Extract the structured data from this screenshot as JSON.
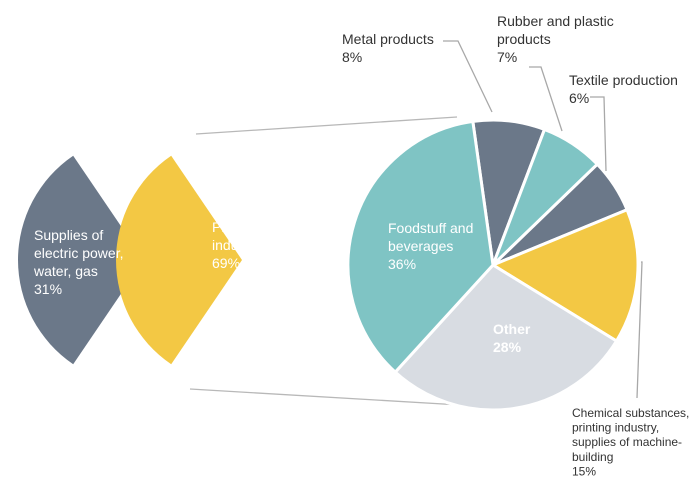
{
  "chart_data": [
    {
      "type": "pie",
      "slices": [
        {
          "name": "Supplies of electric power, water, gas",
          "lines": [
            "Supplies of",
            "electric power,",
            "water, gas"
          ],
          "value": 31,
          "label": "31%",
          "color": "#6b7889"
        },
        {
          "name": "Processing industry",
          "lines": [
            "Processing",
            "industry"
          ],
          "value": 69,
          "label": "69%",
          "color": "#f3c844"
        }
      ]
    },
    {
      "type": "pie",
      "slices": [
        {
          "name": "Metal products",
          "lines": [
            "Metal products"
          ],
          "value": 8,
          "label": "8%",
          "color": "#6b7889"
        },
        {
          "name": "Rubber and plastic products",
          "lines": [
            "Rubber and plastic",
            "products"
          ],
          "value": 7,
          "label": "7%",
          "color": "#7fc4c4"
        },
        {
          "name": "Textile production",
          "lines": [
            "Textile production"
          ],
          "value": 6,
          "label": "6%",
          "color": "#6b7889"
        },
        {
          "name": "Chemical substances, printing industry, supplies of machine-building",
          "lines": [
            "Chemical substances,",
            "printing industry,",
            "supplies of machine-",
            "building"
          ],
          "value": 15,
          "label": "15%",
          "color": "#f3c844"
        },
        {
          "name": "Other",
          "lines": [
            "Other"
          ],
          "value": 28,
          "label": "28%",
          "color": "#d8dce2"
        },
        {
          "name": "Foodstuff and beverages",
          "lines": [
            "Foodstuff and",
            "beverages"
          ],
          "value": 36,
          "label": "36%",
          "color": "#7fc4c4"
        }
      ]
    }
  ]
}
